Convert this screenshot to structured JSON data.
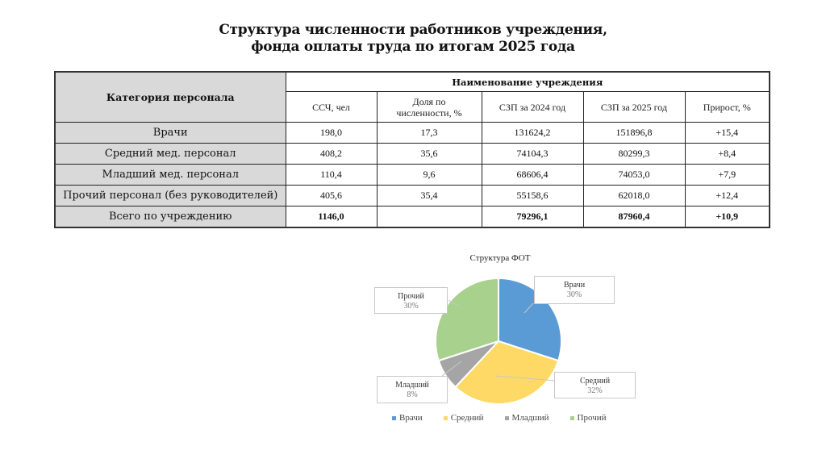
{
  "title": {
    "line1": "Структура численности работников учреждения,",
    "line2": "фонда оплаты труда  по  итогам 2025 года"
  },
  "table": {
    "category_header": "Категория персонала",
    "org_header": "Наименование учреждения",
    "columns": [
      "ССЧ, чел",
      "Доля по численности, %",
      "СЗП за 2024 год",
      "СЗП за 2025 год",
      "Прирост, %"
    ],
    "column_lines": [
      [
        "ССЧ, чел"
      ],
      [
        "Доля по",
        "численности, %"
      ],
      [
        "СЗП за 2024 год"
      ],
      [
        "СЗП за 2025 год"
      ],
      [
        "Прирост, %"
      ]
    ],
    "rows": [
      {
        "category": "Врачи",
        "ssch": "198,0",
        "share": "17,3",
        "szp2024": "131624,2",
        "szp2025": "151896,8",
        "growth": "+15,4"
      },
      {
        "category": "Средний мед. персонал",
        "ssch": "408,2",
        "share": "35,6",
        "szp2024": "74104,3",
        "szp2025": "80299,3",
        "growth": "+8,4"
      },
      {
        "category": "Младший мед. персонал",
        "ssch": "110,4",
        "share": "9,6",
        "szp2024": "68606,4",
        "szp2025": "74053,0",
        "growth": "+7,9"
      },
      {
        "category": "Прочий персонал (без руководителей)",
        "ssch": "405,6",
        "share": "35,4",
        "szp2024": "55158,6",
        "szp2025": "62018,0",
        "growth": "+12,4"
      }
    ],
    "total": {
      "category": "Всего по учреждению",
      "ssch": "1146,0",
      "share": "",
      "szp2024": "79296,1",
      "szp2025": "87960,4",
      "growth": "+10,9"
    }
  },
  "chart_data": [
    {
      "type": "table",
      "title": "Структура численности работников учреждения, фонда оплаты труда по итогам 2025 года",
      "columns": [
        "Категория персонала",
        "ССЧ, чел",
        "Доля по численности, %",
        "СЗП за 2024 год",
        "СЗП за 2025 год",
        "Прирост, %"
      ],
      "rows": [
        [
          "Врачи",
          198.0,
          17.3,
          131624.2,
          151896.8,
          15.4
        ],
        [
          "Средний мед. персонал",
          408.2,
          35.6,
          74104.3,
          80299.3,
          8.4
        ],
        [
          "Младший мед. персонал",
          110.4,
          9.6,
          68606.4,
          74053.0,
          7.9
        ],
        [
          "Прочий персонал (без руководителей)",
          405.6,
          35.4,
          55158.6,
          62018.0,
          12.4
        ],
        [
          "Всего по учреждению",
          1146.0,
          null,
          79296.1,
          87960.4,
          10.9
        ]
      ]
    },
    {
      "type": "pie",
      "title": "Структура ФОТ",
      "categories": [
        "Врачи",
        "Средний",
        "Младший",
        "Прочий"
      ],
      "values": [
        30,
        32,
        8,
        30
      ],
      "labels": [
        "30%",
        "32%",
        "8%",
        "30%"
      ],
      "colors": [
        "#5b9bd5",
        "#ffd966",
        "#a5a5a5",
        "#a9d18e"
      ],
      "legend_position": "bottom"
    }
  ],
  "pie": {
    "title": "Структура ФОТ",
    "slices": [
      {
        "name": "Врачи",
        "pct": "30%",
        "value": 30,
        "color": "#5b9bd5"
      },
      {
        "name": "Средний",
        "pct": "32%",
        "value": 32,
        "color": "#ffd966"
      },
      {
        "name": "Младший",
        "pct": "8%",
        "value": 8,
        "color": "#a5a5a5"
      },
      {
        "name": "Прочий",
        "pct": "30%",
        "value": 30,
        "color": "#a9d18e"
      }
    ],
    "legend": [
      "Врачи",
      "Средний",
      "Младший",
      "Прочий"
    ]
  }
}
